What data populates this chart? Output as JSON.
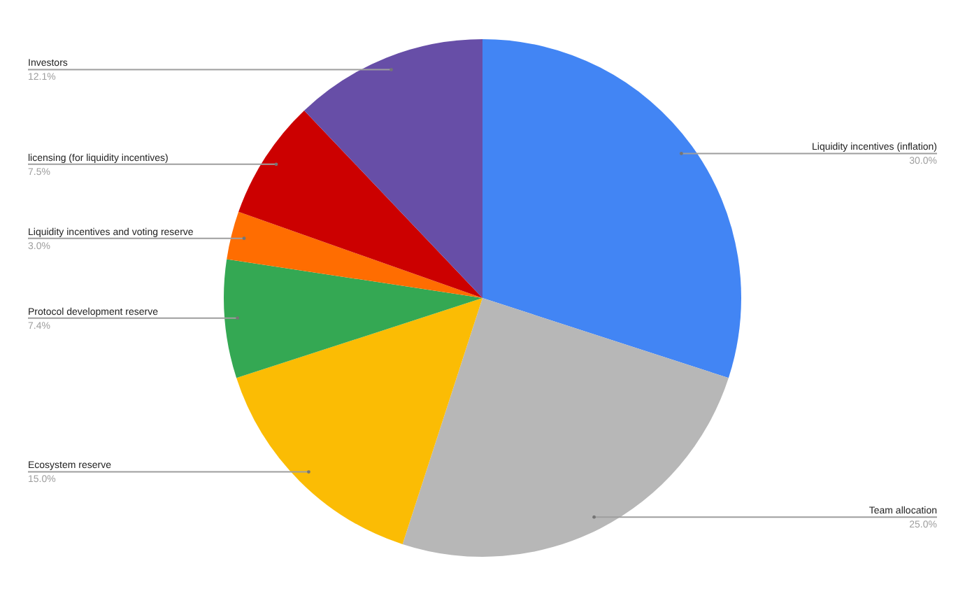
{
  "chart_data": {
    "type": "pie",
    "categories": [
      "Liquidity incentives (inflation)",
      "Team allocation",
      "Ecosystem reserve",
      "Protocol development reserve",
      "Liquidity incentives and voting reserve",
      "licensing (for liquidity incentives)",
      "Investors"
    ],
    "values": [
      30.0,
      25.0,
      15.0,
      7.4,
      3.0,
      7.5,
      12.1
    ],
    "value_labels": [
      "30.0%",
      "25.0%",
      "15.0%",
      "7.4%",
      "3.0%",
      "7.5%",
      "12.1%"
    ],
    "colors": [
      "#4285f4",
      "#b7b7b7",
      "#fbbc04",
      "#34a853",
      "#ff6d01",
      "#cc0000",
      "#674ea7"
    ]
  }
}
